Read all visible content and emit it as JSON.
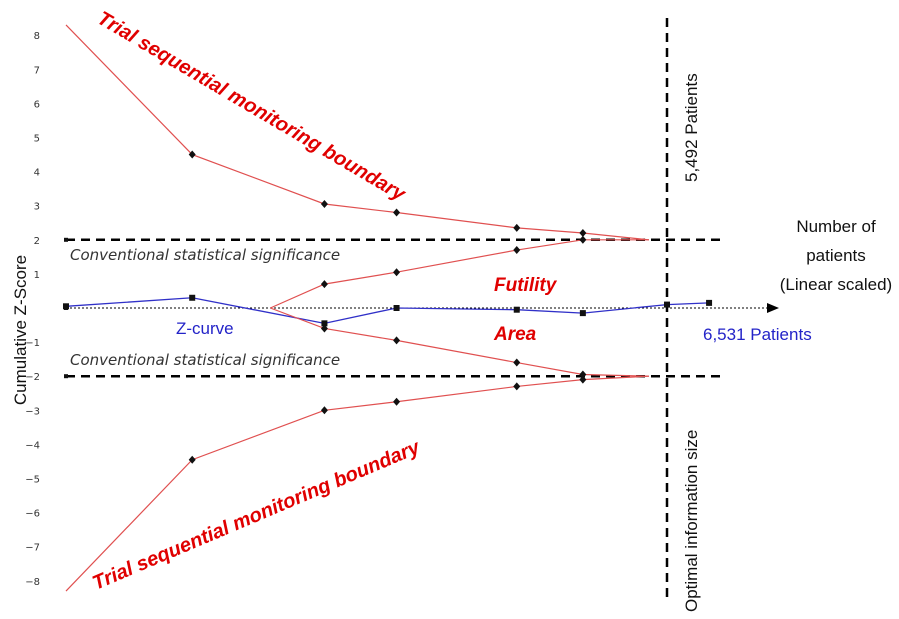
{
  "chart_data": {
    "type": "line",
    "ylabel": "Cumulative Z-Score",
    "yticks": [
      8,
      7,
      6,
      5,
      4,
      3,
      2,
      1,
      -1,
      -2,
      -3,
      -4,
      -5,
      -6,
      -7,
      -8
    ],
    "ylim": [
      -8,
      8
    ],
    "x_axis": {
      "label_line1": "Number of",
      "label_line2": "patients",
      "label_line3": "(Linear scaled)"
    },
    "series": [
      {
        "key": "z_curve",
        "color": "#3030c8",
        "values": [
          [
            0,
            0.05
          ],
          [
            0.21,
            0.3
          ],
          [
            0.43,
            -0.45
          ],
          [
            0.55,
            0.0
          ],
          [
            0.75,
            -0.05
          ],
          [
            0.86,
            -0.15
          ],
          [
            1.0,
            0.1
          ],
          [
            1.07,
            0.15
          ]
        ]
      },
      {
        "key": "upper_boundary",
        "color": "#e05050",
        "values": [
          [
            0,
            8.3
          ],
          [
            0.21,
            4.5
          ],
          [
            0.43,
            3.05
          ],
          [
            0.55,
            2.8
          ],
          [
            0.75,
            2.35
          ],
          [
            0.86,
            2.2
          ],
          [
            0.97,
            2.0
          ]
        ]
      },
      {
        "key": "lower_boundary",
        "color": "#e05050",
        "values": [
          [
            0,
            -8.3
          ],
          [
            0.21,
            -4.45
          ],
          [
            0.43,
            -3.0
          ],
          [
            0.55,
            -2.75
          ],
          [
            0.75,
            -2.3
          ],
          [
            0.86,
            -2.1
          ],
          [
            0.97,
            -2.0
          ]
        ]
      },
      {
        "key": "upper_futility",
        "color": "#e05050",
        "values": [
          [
            0.34,
            0.0
          ],
          [
            0.43,
            0.7
          ],
          [
            0.55,
            1.05
          ],
          [
            0.75,
            1.7
          ],
          [
            0.86,
            2.0
          ],
          [
            0.97,
            2.0
          ]
        ]
      },
      {
        "key": "lower_futility",
        "color": "#e05050",
        "values": [
          [
            0.34,
            0.0
          ],
          [
            0.43,
            -0.6
          ],
          [
            0.55,
            -0.95
          ],
          [
            0.75,
            -1.6
          ],
          [
            0.86,
            -1.95
          ],
          [
            0.97,
            -2.0
          ]
        ]
      }
    ],
    "reference_lines": {
      "significance_upper": 2,
      "significance_lower": -2
    },
    "labels": {
      "boundary_upper": "Trial sequential monitoring boundary",
      "boundary_lower": "Trial sequential monitoring boundary",
      "conventional_upper": "Conventional statistical significance",
      "conventional_lower": "Conventional statistical significance",
      "futility": "Futility",
      "area": "Area",
      "z_curve": "Z-curve",
      "patients_actual": "6,531 Patients",
      "patients_required": "5,492 Patients",
      "optimal_information": "Optimal information size"
    },
    "colors": {
      "boundary": "#e05050",
      "boundary_text": "#e00000",
      "z_curve": "#3030c8",
      "z_curve_text": "#2323c8",
      "reference": "#000000"
    }
  }
}
